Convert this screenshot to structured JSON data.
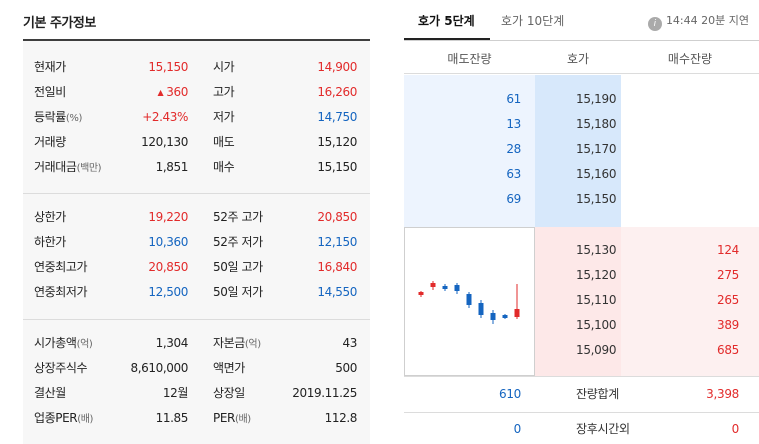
{
  "basic": {
    "title": "기본 주가정보",
    "rows1": [
      {
        "label": "현재가",
        "value": "15,150",
        "vclass": "up",
        "label2": "시가",
        "value2": "14,900",
        "v2class": "up"
      },
      {
        "label": "전일비",
        "value": "360",
        "vclass": "up",
        "arrow": "▲",
        "label2": "고가",
        "value2": "16,260",
        "v2class": "up"
      },
      {
        "label": "등락률",
        "unit": "(%)",
        "value": "+2.43%",
        "vclass": "up",
        "label2": "저가",
        "value2": "14,750",
        "v2class": "down"
      },
      {
        "label": "거래량",
        "value": "120,130",
        "label2": "매도",
        "value2": "15,120"
      },
      {
        "label": "거래대금",
        "unit": "(백만)",
        "value": "1,851",
        "label2": "매수",
        "value2": "15,150"
      }
    ],
    "rows2": [
      {
        "label": "상한가",
        "value": "19,220",
        "vclass": "up",
        "label2": "52주 고가",
        "value2": "20,850",
        "v2class": "up"
      },
      {
        "label": "하한가",
        "value": "10,360",
        "vclass": "down",
        "label2": "52주 저가",
        "value2": "12,150",
        "v2class": "down"
      },
      {
        "label": "연중최고가",
        "value": "20,850",
        "vclass": "up",
        "label2": "50일 고가",
        "value2": "16,840",
        "v2class": "up"
      },
      {
        "label": "연중최저가",
        "value": "12,500",
        "vclass": "down",
        "label2": "50일 저가",
        "value2": "14,550",
        "v2class": "down"
      }
    ],
    "rows3": [
      {
        "label": "시가총액",
        "unit": "(억)",
        "value": "1,304",
        "label2": "자본금",
        "unit2": "(억)",
        "value2": "43"
      },
      {
        "label": "상장주식수",
        "value": "8,610,000",
        "label2": "액면가",
        "value2": "500"
      },
      {
        "label": "결산월",
        "value": "12월",
        "label2": "상장일",
        "value2": "2019.11.25"
      },
      {
        "label": "업종PER",
        "unit": "(배)",
        "value": "11.85",
        "label2": "PER",
        "unit2": "(배)",
        "value2": "112.8"
      }
    ]
  },
  "orderbook": {
    "tab_active": "호가 5단계",
    "tab_inactive": "호가 10단계",
    "delay_note": "14:44 20분 지연",
    "info_icon": "i",
    "col_ask": "매도잔량",
    "col_price": "호가",
    "col_bid": "매수잔량",
    "asks": [
      {
        "qty": "61",
        "price": "15,190"
      },
      {
        "qty": "13",
        "price": "15,180"
      },
      {
        "qty": "28",
        "price": "15,170"
      },
      {
        "qty": "63",
        "price": "15,160"
      },
      {
        "qty": "69",
        "price": "15,150"
      }
    ],
    "bids": [
      {
        "price": "15,130",
        "qty": "124"
      },
      {
        "price": "15,120",
        "qty": "275"
      },
      {
        "price": "15,110",
        "qty": "265"
      },
      {
        "price": "15,100",
        "qty": "389"
      },
      {
        "price": "15,090",
        "qty": "685"
      }
    ],
    "total_label": "잔량합계",
    "total_ask": "610",
    "total_bid": "3,398",
    "after_label": "장후시간외",
    "after_ask": "0",
    "after_bid": "0"
  },
  "colors": {
    "up": "#e22b2b",
    "down": "#1565c0"
  }
}
